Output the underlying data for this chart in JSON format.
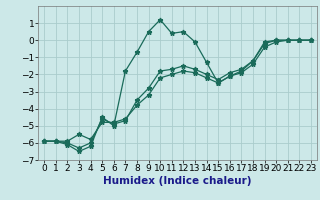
{
  "xlabel": "Humidex (Indice chaleur)",
  "background_color": "#cce8e8",
  "grid_color": "#aacccc",
  "line_color": "#1a6b5a",
  "xlim": [
    -0.5,
    23.5
  ],
  "ylim": [
    -7,
    2
  ],
  "yticks": [
    -7,
    -6,
    -5,
    -4,
    -3,
    -2,
    -1,
    0,
    1
  ],
  "xticks": [
    0,
    1,
    2,
    3,
    4,
    5,
    6,
    7,
    8,
    9,
    10,
    11,
    12,
    13,
    14,
    15,
    16,
    17,
    18,
    19,
    20,
    21,
    22,
    23
  ],
  "line1_x": [
    0,
    1,
    2,
    3,
    4,
    5,
    6,
    7,
    8,
    9,
    10,
    11,
    12,
    13,
    14,
    15,
    16,
    17,
    18,
    19,
    20,
    21,
    22,
    23
  ],
  "line1_y": [
    -5.9,
    -5.9,
    -6.1,
    -6.5,
    -6.2,
    -4.5,
    -5.0,
    -1.8,
    -0.7,
    0.5,
    1.2,
    0.4,
    0.5,
    -0.1,
    -1.3,
    -2.5,
    -2.1,
    -1.8,
    -1.2,
    -0.1,
    -0.0,
    -0.0,
    -0.0,
    -0.0
  ],
  "line2_x": [
    0,
    1,
    2,
    3,
    4,
    5,
    6,
    7,
    8,
    9,
    10,
    11,
    12,
    13,
    14,
    15,
    16,
    17,
    18,
    19,
    20,
    21,
    22,
    23
  ],
  "line2_y": [
    -5.9,
    -5.9,
    -5.9,
    -5.5,
    -5.8,
    -4.8,
    -4.8,
    -4.6,
    -3.8,
    -3.2,
    -2.2,
    -2.0,
    -1.8,
    -1.9,
    -2.2,
    -2.5,
    -2.1,
    -1.9,
    -1.4,
    -0.4,
    -0.1,
    -0.0,
    -0.0,
    -0.0
  ],
  "line3_x": [
    0,
    1,
    2,
    3,
    4,
    5,
    6,
    7,
    8,
    9,
    10,
    11,
    12,
    13,
    14,
    15,
    16,
    17,
    18,
    19,
    20,
    21,
    22,
    23
  ],
  "line3_y": [
    -5.9,
    -5.9,
    -6.0,
    -6.3,
    -6.0,
    -4.6,
    -4.9,
    -4.7,
    -3.5,
    -2.8,
    -1.8,
    -1.7,
    -1.5,
    -1.7,
    -2.0,
    -2.3,
    -1.9,
    -1.7,
    -1.2,
    -0.2,
    -0.0,
    -0.0,
    -0.0,
    -0.0
  ],
  "xlabel_fontsize": 7.5,
  "tick_fontsize": 6.5
}
